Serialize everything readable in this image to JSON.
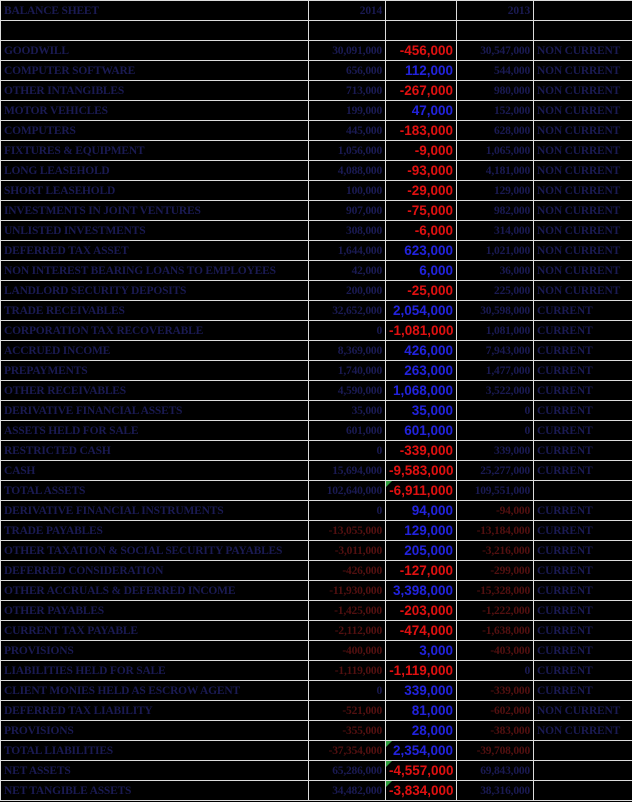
{
  "header": {
    "title": "BALANCE SHEET",
    "col_2014": "2014",
    "col_change": "",
    "col_2013": "2013",
    "col_class": ""
  },
  "colors": {
    "bg": "#000000",
    "grid": "#dcdcdc",
    "dark_navy": "#1a1a52",
    "dark_red": "#521010",
    "bright_red": "#e01010",
    "bright_blue": "#2222dd",
    "marker_green": "#2e9e3e"
  },
  "icons": {
    "error_indicator": "green-corner-triangle"
  },
  "rows": [
    {
      "label": "",
      "y2014": "",
      "change": "",
      "y2013": "",
      "cls": "",
      "marker": false
    },
    {
      "label": "GOODWILL",
      "y2014": "30,091,000",
      "change": "-456,000",
      "y2013": "30,547,000",
      "cls": "NON CURRENT",
      "marker": false
    },
    {
      "label": "COMPUTER SOFTWARE",
      "y2014": "656,000",
      "change": "112,000",
      "y2013": "544,000",
      "cls": "NON CURRENT",
      "marker": false
    },
    {
      "label": "OTHER INTANGIBLES",
      "y2014": "713,000",
      "change": "-267,000",
      "y2013": "980,000",
      "cls": "NON CURRENT",
      "marker": false
    },
    {
      "label": "MOTOR VEHICLES",
      "y2014": "199,000",
      "change": "47,000",
      "y2013": "152,000",
      "cls": "NON CURRENT",
      "marker": false
    },
    {
      "label": "COMPUTERS",
      "y2014": "445,000",
      "change": "-183,000",
      "y2013": "628,000",
      "cls": "NON CURRENT",
      "marker": false
    },
    {
      "label": "FIXTURES & EQUIPMENT",
      "y2014": "1,056,000",
      "change": "-9,000",
      "y2013": "1,065,000",
      "cls": "NON CURRENT",
      "marker": false
    },
    {
      "label": "LONG LEASEHOLD",
      "y2014": "4,088,000",
      "change": "-93,000",
      "y2013": "4,181,000",
      "cls": "NON CURRENT",
      "marker": false
    },
    {
      "label": "SHORT LEASEHOLD",
      "y2014": "100,000",
      "change": "-29,000",
      "y2013": "129,000",
      "cls": "NON CURRENT",
      "marker": false
    },
    {
      "label": "INVESTMENTS IN JOINT VENTURES",
      "y2014": "907,000",
      "change": "-75,000",
      "y2013": "982,000",
      "cls": "NON CURRENT",
      "marker": false
    },
    {
      "label": "UNLISTED INVESTMENTS",
      "y2014": "308,000",
      "change": "-6,000",
      "y2013": "314,000",
      "cls": "NON CURRENT",
      "marker": false
    },
    {
      "label": "DEFERRED TAX ASSET",
      "y2014": "1,644,000",
      "change": "623,000",
      "y2013": "1,021,000",
      "cls": "NON CURRENT",
      "marker": false
    },
    {
      "label": "NON INTEREST BEARING LOANS TO EMPLOYEES",
      "y2014": "42,000",
      "change": "6,000",
      "y2013": "36,000",
      "cls": "NON CURRENT",
      "marker": false
    },
    {
      "label": "LANDLORD SECURITY DEPOSITS",
      "y2014": "200,000",
      "change": "-25,000",
      "y2013": "225,000",
      "cls": "NON CURRENT",
      "marker": false
    },
    {
      "label": "TRADE RECEIVABLES",
      "y2014": "32,652,000",
      "change": "2,054,000",
      "y2013": "30,598,000",
      "cls": "CURRENT",
      "marker": false
    },
    {
      "label": "CORPORATION TAX RECOVERABLE",
      "y2014": "0",
      "change": "-1,081,000",
      "y2013": "1,081,000",
      "cls": "CURRENT",
      "marker": false
    },
    {
      "label": "ACCRUED INCOME",
      "y2014": "8,369,000",
      "change": "426,000",
      "y2013": "7,943,000",
      "cls": "CURRENT",
      "marker": false
    },
    {
      "label": "PREPAYMENTS",
      "y2014": "1,740,000",
      "change": "263,000",
      "y2013": "1,477,000",
      "cls": "CURRENT",
      "marker": false
    },
    {
      "label": "OTHER RECEIVABLES",
      "y2014": "4,590,000",
      "change": "1,068,000",
      "y2013": "3,522,000",
      "cls": "CURRENT",
      "marker": false
    },
    {
      "label": "DERIVATIVE FINANCIAL ASSETS",
      "y2014": "35,000",
      "change": "35,000",
      "y2013": "0",
      "cls": "CURRENT",
      "marker": false
    },
    {
      "label": "ASSETS HELD FOR SALE",
      "y2014": "601,000",
      "change": "601,000",
      "y2013": "0",
      "cls": "CURRENT",
      "marker": false
    },
    {
      "label": "RESTRICTED CASH",
      "y2014": "0",
      "change": "-339,000",
      "y2013": "339,000",
      "cls": "CURRENT",
      "marker": false
    },
    {
      "label": "CASH",
      "y2014": "15,694,000",
      "change": "-9,583,000",
      "y2013": "25,277,000",
      "cls": "CURRENT",
      "marker": false
    },
    {
      "label": "TOTAL ASSETS",
      "y2014": "102,640,000",
      "change": "-6,911,000",
      "y2013": "109,551,000",
      "cls": "",
      "marker": true
    },
    {
      "label": "DERIVATIVE FINANCIAL INSTRUMENTS",
      "y2014": "0",
      "change": "94,000",
      "y2013": "-94,000",
      "cls": "CURRENT",
      "marker": false
    },
    {
      "label": "TRADE PAYABLES",
      "y2014": "-13,055,000",
      "change": "129,000",
      "y2013": "-13,184,000",
      "cls": "CURRENT",
      "marker": false
    },
    {
      "label": "OTHER TAXATION & SOCIAL SECURITY PAYABLES",
      "y2014": "-3,011,000",
      "change": "205,000",
      "y2013": "-3,216,000",
      "cls": "CURRENT",
      "marker": false
    },
    {
      "label": "DEFERRED CONSIDERATION",
      "y2014": "-426,000",
      "change": "-127,000",
      "y2013": "-299,000",
      "cls": "CURRENT",
      "marker": false
    },
    {
      "label": "OTHER ACCRUALS & DEFERRED INCOME",
      "y2014": "-11,930,000",
      "change": "3,398,000",
      "y2013": "-15,328,000",
      "cls": "CURRENT",
      "marker": false
    },
    {
      "label": "OTHER PAYABLES",
      "y2014": "-1,425,000",
      "change": "-203,000",
      "y2013": "-1,222,000",
      "cls": "CURRENT",
      "marker": false
    },
    {
      "label": "CURRENT TAX PAYABLE",
      "y2014": "-2,112,000",
      "change": "-474,000",
      "y2013": "-1,638,000",
      "cls": "CURRENT",
      "marker": false
    },
    {
      "label": "PROVISIONS",
      "y2014": "-400,000",
      "change": "3,000",
      "y2013": "-403,000",
      "cls": "CURRENT",
      "marker": false
    },
    {
      "label": "LIABILITIES HELD FOR SALE",
      "y2014": "-1,119,000",
      "change": "-1,119,000",
      "y2013": "0",
      "cls": "CURRENT",
      "marker": false
    },
    {
      "label": "CLIENT MONIES HELD AS ESCROW AGENT",
      "y2014": "0",
      "change": "339,000",
      "y2013": "-339,000",
      "cls": "CURRENT",
      "marker": false
    },
    {
      "label": "DEFERRED TAX LIABILITY",
      "y2014": "-521,000",
      "change": "81,000",
      "y2013": "-602,000",
      "cls": "NON CURRENT",
      "marker": false
    },
    {
      "label": "PROVISIONS",
      "y2014": "-355,000",
      "change": "28,000",
      "y2013": "-383,000",
      "cls": "NON CURRENT",
      "marker": false
    },
    {
      "label": "TOTAL LIABILITIES",
      "y2014": "-37,354,000",
      "change": "2,354,000",
      "y2013": "-39,708,000",
      "cls": "",
      "marker": true
    },
    {
      "label": "NET ASSETS",
      "y2014": "65,286,000",
      "change": "-4,557,000",
      "y2013": "69,843,000",
      "cls": "",
      "marker": true
    },
    {
      "label": "NET TANGIBLE ASSETS",
      "y2014": "34,482,000",
      "change": "-3,834,000",
      "y2013": "38,316,000",
      "cls": "",
      "marker": true
    }
  ]
}
